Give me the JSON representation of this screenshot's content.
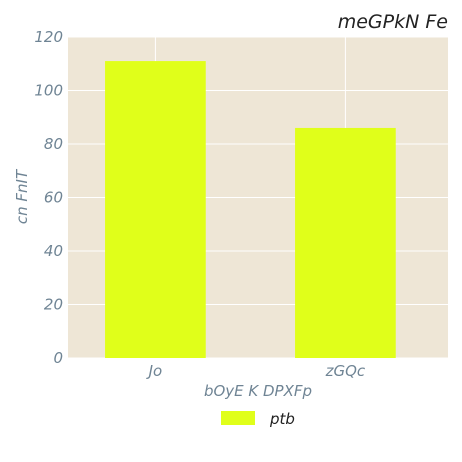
{
  "chart_data": {
    "type": "bar",
    "title": "meGPkN Fe",
    "xlabel": "bOyE K DPXFp",
    "ylabel": "cn FnIT",
    "categories": [
      "Jo",
      "zGQc"
    ],
    "series": [
      {
        "name": "ptb",
        "values": [
          111,
          86
        ]
      }
    ],
    "ylim": [
      0,
      120
    ],
    "yticks": [
      0,
      20,
      40,
      60,
      80,
      100,
      120
    ],
    "grid": true,
    "legend": "bottom-center",
    "colors": {
      "bar": "#e0ff1a",
      "plot_background": "#eee6d6",
      "grid": "#ffffff",
      "text": "#6f8494",
      "title": "#222222"
    }
  }
}
